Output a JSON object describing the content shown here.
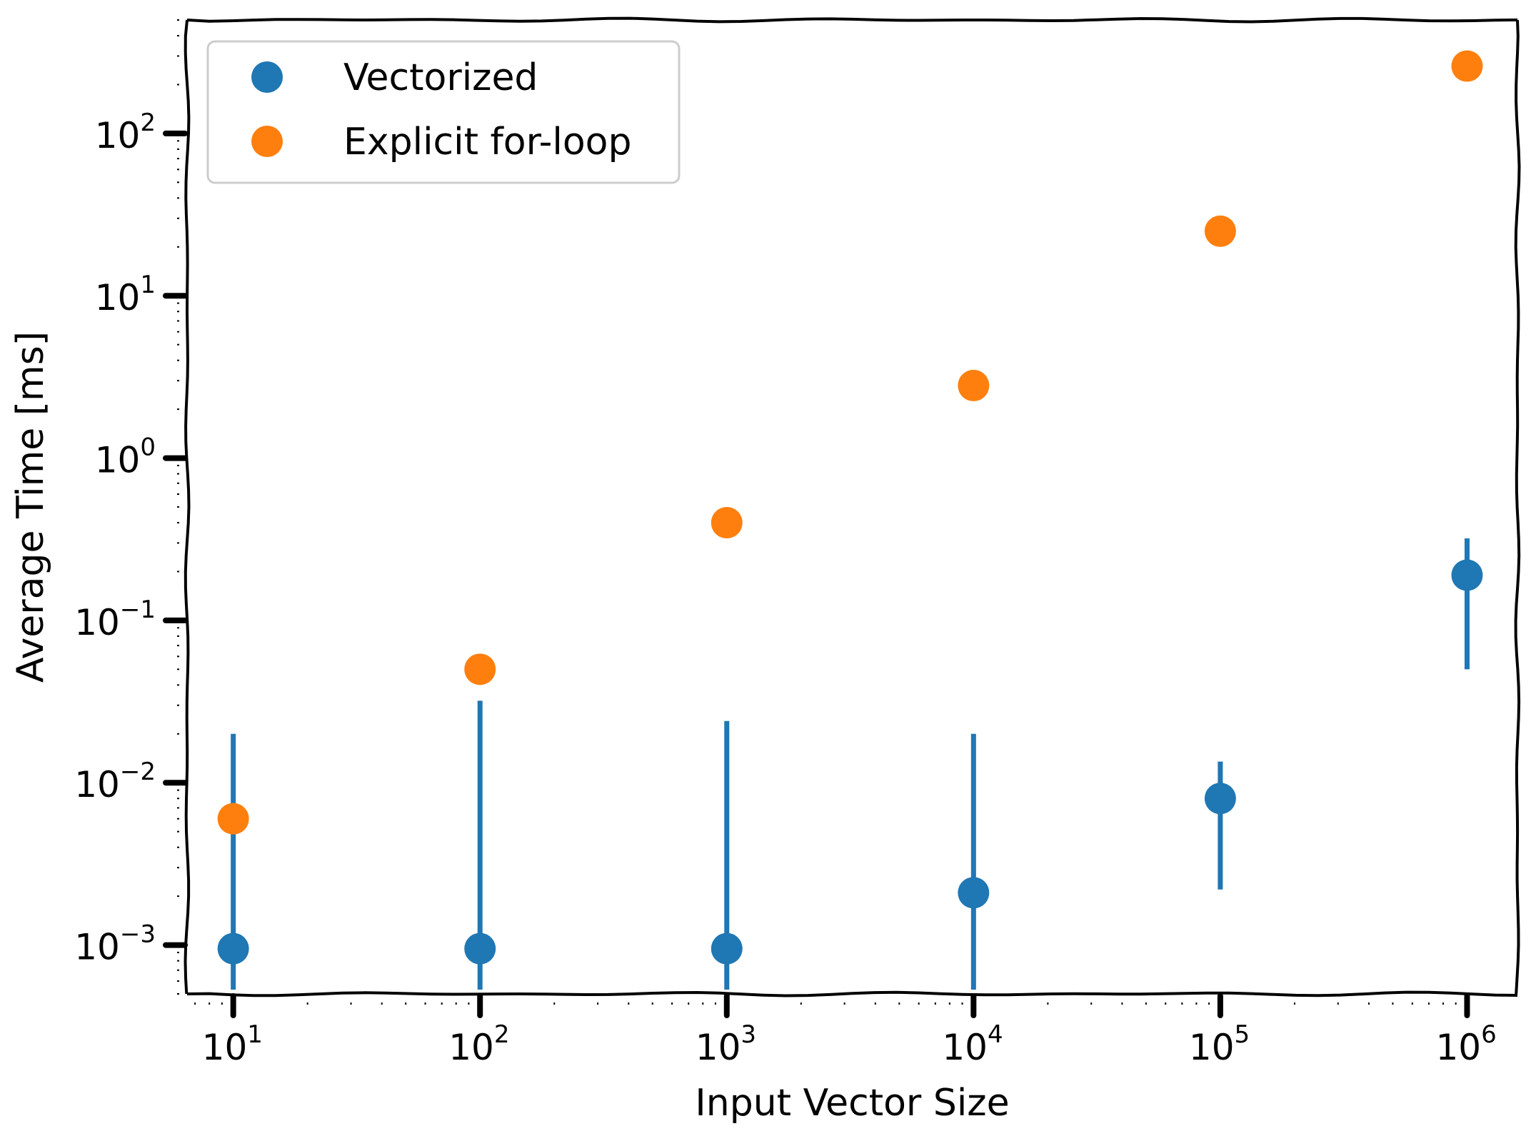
{
  "chart_data": {
    "type": "scatter",
    "xlabel": "Input Vector Size",
    "ylabel": "Average Time [ms]",
    "xscale": "log",
    "yscale": "log",
    "xlim": [
      6.5,
      1600000
    ],
    "ylim": [
      0.0005,
      500
    ],
    "xticks": [
      {
        "base": "10",
        "exp": "1",
        "value": 10
      },
      {
        "base": "10",
        "exp": "2",
        "value": 100
      },
      {
        "base": "10",
        "exp": "3",
        "value": 1000
      },
      {
        "base": "10",
        "exp": "4",
        "value": 10000
      },
      {
        "base": "10",
        "exp": "5",
        "value": 100000
      },
      {
        "base": "10",
        "exp": "6",
        "value": 1000000
      }
    ],
    "yticks": [
      {
        "base": "10",
        "exp": "−3",
        "value": 0.001
      },
      {
        "base": "10",
        "exp": "−2",
        "value": 0.01
      },
      {
        "base": "10",
        "exp": "−1",
        "value": 0.1
      },
      {
        "base": "10",
        "exp": "0",
        "value": 1
      },
      {
        "base": "10",
        "exp": "1",
        "value": 10
      },
      {
        "base": "10",
        "exp": "2",
        "value": 100
      }
    ],
    "legend_position": "top-left",
    "grid": false,
    "series": [
      {
        "name": "Vectorized",
        "color": "#1f77b4",
        "x": [
          10,
          100,
          1000,
          10000,
          100000,
          1000000
        ],
        "y": [
          0.00095,
          0.00095,
          0.00095,
          0.0021,
          0.008,
          0.19
        ],
        "error_low": [
          0.0005,
          0.0005,
          0.0005,
          0.0005,
          0.0022,
          0.05
        ],
        "error_high": [
          0.02,
          0.032,
          0.024,
          0.02,
          0.0135,
          0.32
        ]
      },
      {
        "name": "Explicit for-loop",
        "color": "#ff7f0e",
        "x": [
          10,
          100,
          1000,
          10000,
          100000,
          1000000
        ],
        "y": [
          0.006,
          0.05,
          0.4,
          2.8,
          25,
          260
        ]
      }
    ]
  }
}
